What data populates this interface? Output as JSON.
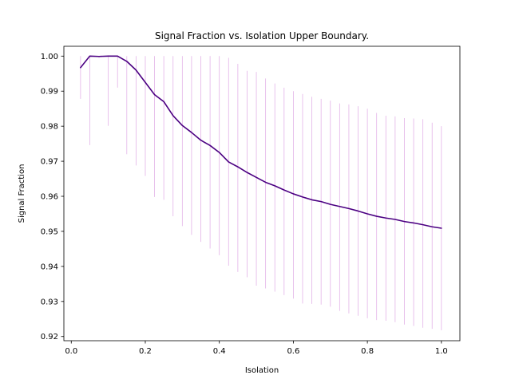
{
  "chart_data": {
    "type": "line",
    "title": "Signal Fraction vs. Isolation Upper Boundary.",
    "xlabel": "Isolation",
    "ylabel": "Signal Fraction",
    "xlim": [
      -0.02,
      1.05
    ],
    "ylim": [
      0.9188,
      1.0028
    ],
    "xticks": [
      0.0,
      0.2,
      0.4,
      0.6,
      0.8,
      1.0
    ],
    "xtick_labels": [
      "0.0",
      "0.2",
      "0.4",
      "0.6",
      "0.8",
      "1.0"
    ],
    "yticks": [
      0.92,
      0.93,
      0.94,
      0.95,
      0.96,
      0.97,
      0.98,
      0.99,
      1.0
    ],
    "ytick_labels": [
      "0.92",
      "0.93",
      "0.94",
      "0.95",
      "0.96",
      "0.97",
      "0.98",
      "0.99",
      "1.00"
    ],
    "grid": false,
    "legend": false,
    "line_color": "#4b0082",
    "errorbar_color": "#e3b3e8",
    "series": [
      {
        "x": [
          0.025,
          0.05,
          0.075,
          0.1,
          0.125,
          0.15,
          0.175,
          0.2,
          0.225,
          0.25,
          0.275,
          0.3,
          0.325,
          0.35,
          0.375,
          0.4,
          0.425,
          0.45,
          0.475,
          0.5,
          0.525,
          0.55,
          0.575,
          0.6,
          0.625,
          0.65,
          0.675,
          0.7,
          0.725,
          0.75,
          0.775,
          0.8,
          0.825,
          0.85,
          0.875,
          0.9,
          0.925,
          0.95,
          0.975,
          1.0
        ],
        "y": [
          0.9967,
          1.0,
          0.9999,
          1.0,
          1.0,
          0.9985,
          0.996,
          0.9925,
          0.989,
          0.987,
          0.983,
          0.9802,
          0.9782,
          0.976,
          0.9745,
          0.9725,
          0.9698,
          0.9684,
          0.9668,
          0.9654,
          0.964,
          0.963,
          0.9618,
          0.9607,
          0.9598,
          0.959,
          0.9585,
          0.9577,
          0.9571,
          0.9565,
          0.9558,
          0.955,
          0.9543,
          0.9538,
          0.9534,
          0.9528,
          0.9524,
          0.9519,
          0.9513,
          0.9509
        ],
        "err_low": [
          0.9878,
          0.9746,
          0.9995,
          0.9801,
          0.991,
          0.972,
          0.9688,
          0.9658,
          0.9598,
          0.959,
          0.9543,
          0.9515,
          0.949,
          0.947,
          0.9451,
          0.9432,
          0.9402,
          0.9384,
          0.9369,
          0.9345,
          0.9337,
          0.9328,
          0.9318,
          0.9308,
          0.9294,
          0.9293,
          0.9291,
          0.9285,
          0.9273,
          0.9266,
          0.9259,
          0.9252,
          0.9247,
          0.9245,
          0.9241,
          0.9234,
          0.923,
          0.9225,
          0.9222,
          0.9218
        ],
        "err_high": [
          1.0,
          1.0,
          1.0,
          1.0,
          1.0,
          1.0,
          1.0,
          1.0,
          1.0,
          1.0,
          1.0,
          1.0,
          1.0,
          1.0,
          1.0,
          1.0,
          0.9995,
          0.9978,
          0.9958,
          0.9955,
          0.9936,
          0.9922,
          0.991,
          0.99,
          0.9892,
          0.9884,
          0.9878,
          0.9873,
          0.9865,
          0.9862,
          0.9857,
          0.985,
          0.9838,
          0.983,
          0.9828,
          0.9823,
          0.9822,
          0.982,
          0.981,
          0.98
        ]
      }
    ]
  }
}
